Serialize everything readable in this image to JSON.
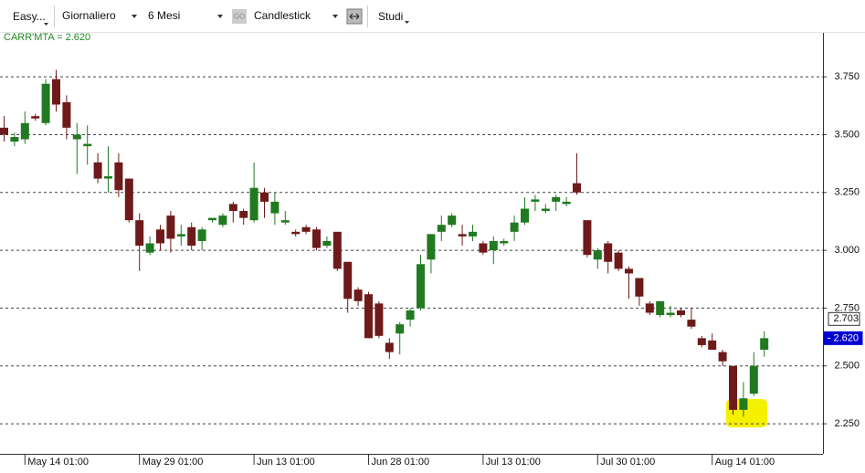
{
  "toolbar": {
    "symbol": "Easy...",
    "period": "Giornaliero",
    "range": "6 Mesi",
    "go": "GO",
    "chart_type": "Candlestick",
    "studies": "Studi"
  },
  "chart_data": {
    "type": "candlestick",
    "indicator_label": "CARR'MTA = 2.620",
    "categories": [
      null,
      null,
      "May 14 01:00",
      null,
      null,
      null,
      null,
      null,
      null,
      null,
      null,
      null,
      null,
      "May 29 01:00",
      null,
      null,
      null,
      null,
      null,
      null,
      null,
      null,
      null,
      null,
      "Jun 13 01:00",
      null,
      null,
      null,
      null,
      null,
      null,
      null,
      null,
      null,
      null,
      "Jun 28 01:00",
      null,
      null,
      null,
      null,
      null,
      null,
      null,
      null,
      null,
      null,
      "Jul 13 01:00",
      null,
      null,
      null,
      null,
      null,
      null,
      null,
      null,
      null,
      null,
      "Jul 30 01:00",
      null,
      null,
      null,
      null,
      null,
      null,
      null,
      null,
      null,
      null,
      "Aug 14 01:00",
      null,
      null,
      null,
      null,
      null
    ],
    "open": [
      3.53,
      3.47,
      3.48,
      3.58,
      3.55,
      3.74,
      3.64,
      3.48,
      3.45,
      3.38,
      3.31,
      3.38,
      3.31,
      3.13,
      2.99,
      3.09,
      3.15,
      3.06,
      3.1,
      3.04,
      3.13,
      3.11,
      3.2,
      3.17,
      3.13,
      3.25,
      3.16,
      3.12,
      3.08,
      3.1,
      3.09,
      3.02,
      3.08,
      2.95,
      2.83,
      2.81,
      2.77,
      2.6,
      2.64,
      2.7,
      2.75,
      2.96,
      3.08,
      3.11,
      3.07,
      3.06,
      3.03,
      3.0,
      3.03,
      3.08,
      3.12,
      3.21,
      3.17,
      3.21,
      3.2,
      3.29,
      3.13,
      2.96,
      3.03,
      2.99,
      2.92,
      2.88,
      2.77,
      2.72,
      2.72,
      2.74,
      2.7,
      2.62,
      2.61,
      2.56,
      2.5,
      2.31,
      2.38,
      2.57
    ],
    "high": [
      3.58,
      3.51,
      3.6,
      3.59,
      3.74,
      3.78,
      3.67,
      3.55,
      3.54,
      3.42,
      3.45,
      3.42,
      3.31,
      3.16,
      3.06,
      3.11,
      3.17,
      3.11,
      3.12,
      3.1,
      3.14,
      3.16,
      3.21,
      3.18,
      3.38,
      3.27,
      3.25,
      3.17,
      3.09,
      3.11,
      3.1,
      3.06,
      3.08,
      2.95,
      2.84,
      2.82,
      2.78,
      2.62,
      2.69,
      2.75,
      2.98,
      3.07,
      3.15,
      3.16,
      3.11,
      3.11,
      3.04,
      3.06,
      3.05,
      3.15,
      3.23,
      3.24,
      3.2,
      3.24,
      3.23,
      3.42,
      3.13,
      3.01,
      3.04,
      3.0,
      2.93,
      2.88,
      2.78,
      2.78,
      2.76,
      2.75,
      2.75,
      2.63,
      2.64,
      2.57,
      2.5,
      2.43,
      2.56,
      2.65
    ],
    "low": [
      3.47,
      3.45,
      3.46,
      3.56,
      3.54,
      3.6,
      3.48,
      3.33,
      3.37,
      3.29,
      3.25,
      3.23,
      3.12,
      2.91,
      2.98,
      3.0,
      2.99,
      3.02,
      3.0,
      3.0,
      3.12,
      3.1,
      3.12,
      3.11,
      3.12,
      3.14,
      3.11,
      3.11,
      3.06,
      3.07,
      3.0,
      3.01,
      2.91,
      2.73,
      2.76,
      2.62,
      2.62,
      2.53,
      2.55,
      2.67,
      2.74,
      2.9,
      3.04,
      3.1,
      3.02,
      3.04,
      2.98,
      2.94,
      3.02,
      3.04,
      3.11,
      3.17,
      3.16,
      3.17,
      3.19,
      3.24,
      2.97,
      2.92,
      2.9,
      2.91,
      2.79,
      2.76,
      2.72,
      2.71,
      2.71,
      2.71,
      2.66,
      2.58,
      2.57,
      2.5,
      2.29,
      2.28,
      2.37,
      2.54
    ],
    "close": [
      3.5,
      3.49,
      3.55,
      3.57,
      3.72,
      3.63,
      3.53,
      3.5,
      3.46,
      3.31,
      3.32,
      3.26,
      3.13,
      3.02,
      3.03,
      3.03,
      3.05,
      3.07,
      3.02,
      3.09,
      3.14,
      3.15,
      3.17,
      3.14,
      3.27,
      3.21,
      3.21,
      3.13,
      3.07,
      3.08,
      3.01,
      3.04,
      2.92,
      2.79,
      2.78,
      2.62,
      2.63,
      2.56,
      2.68,
      2.74,
      2.94,
      3.07,
      3.11,
      3.15,
      3.06,
      3.08,
      2.99,
      3.04,
      3.04,
      3.12,
      3.18,
      3.22,
      3.18,
      3.23,
      3.21,
      3.25,
      2.98,
      3.0,
      2.95,
      2.92,
      2.9,
      2.8,
      2.73,
      2.78,
      2.73,
      2.72,
      2.67,
      2.59,
      2.57,
      2.52,
      2.31,
      2.36,
      2.5,
      2.62
    ],
    "up_color": "#217a21",
    "down_color": "#6e1a1a",
    "ylim": [
      2.12,
      3.94
    ],
    "yticks": [
      {
        "value": 2.25,
        "label": "2.250"
      },
      {
        "value": 2.5,
        "label": "2.500"
      },
      {
        "value": 2.75,
        "label": "2.750"
      },
      {
        "value": 3.0,
        "label": "3.000"
      },
      {
        "value": 3.25,
        "label": "3.250"
      },
      {
        "value": 3.5,
        "label": "3.500"
      },
      {
        "value": 3.75,
        "label": "3.750"
      }
    ],
    "grid": true,
    "price_markers": [
      {
        "value": 2.703,
        "label": "2.703"
      },
      {
        "value": 2.62,
        "label": "2.620"
      }
    ]
  }
}
